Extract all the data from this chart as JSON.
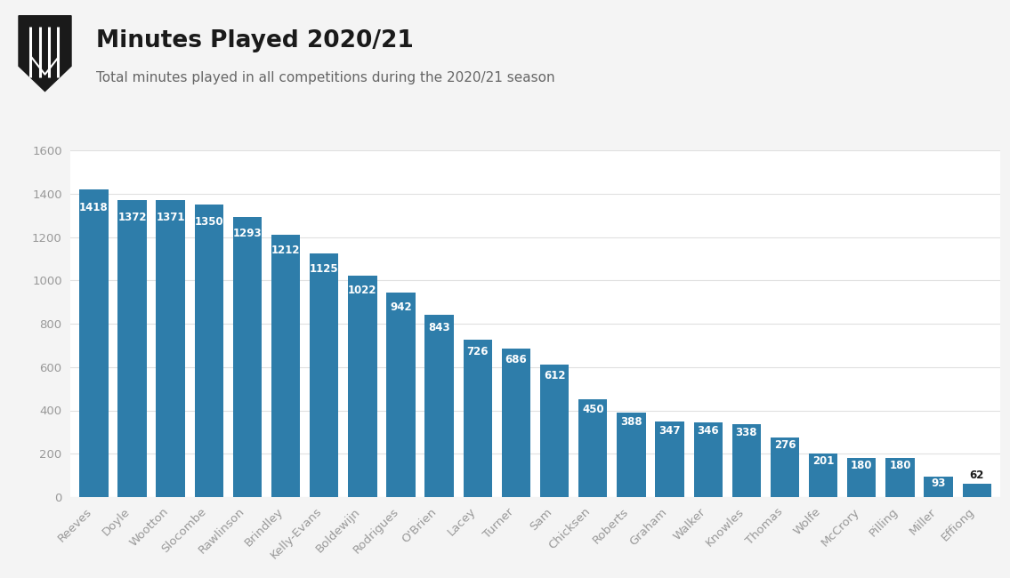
{
  "title": "Minutes Played 2020/21",
  "subtitle": "Total minutes played in all competitions during the 2020/21 season",
  "categories": [
    "Reeves",
    "Doyle",
    "Wootton",
    "Slocombe",
    "Rawlinson",
    "Brindley",
    "Kelly-Evans",
    "Boldewijn",
    "Rodrigues",
    "O'Brien",
    "Lacey",
    "Turner",
    "Sam",
    "Chicksen",
    "Roberts",
    "Graham",
    "Walker",
    "Knowles",
    "Thomas",
    "Wolfe",
    "McCrory",
    "Pilling",
    "Miller",
    "Effiong"
  ],
  "values": [
    1418,
    1372,
    1371,
    1350,
    1293,
    1212,
    1125,
    1022,
    942,
    843,
    726,
    686,
    612,
    450,
    388,
    347,
    346,
    338,
    276,
    201,
    180,
    180,
    93,
    62
  ],
  "bar_color": "#2e7daa",
  "label_color": "#ffffff",
  "background_color": "#f4f4f4",
  "plot_bg_color": "#ffffff",
  "title_color": "#1a1a1a",
  "subtitle_color": "#666666",
  "axis_label_color": "#999999",
  "grid_color": "#e0e0e0",
  "ylim": [
    0,
    1600
  ],
  "yticks": [
    0,
    200,
    400,
    600,
    800,
    1000,
    1200,
    1400,
    1600
  ],
  "title_fontsize": 19,
  "subtitle_fontsize": 11,
  "bar_label_fontsize": 8.5,
  "tick_label_fontsize": 9.5
}
